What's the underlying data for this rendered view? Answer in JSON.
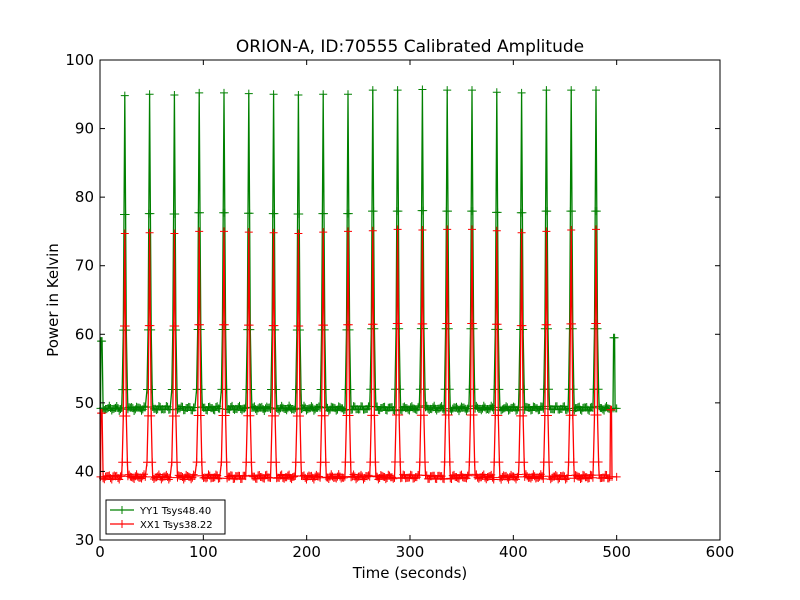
{
  "chart_data": {
    "type": "line",
    "title": "ORION-A, ID:70555 Calibrated Amplitude",
    "xlabel": "Time (seconds)",
    "ylabel": "Power in Kelvin",
    "xlim": [
      0,
      600
    ],
    "ylim": [
      30,
      100
    ],
    "xticks": [
      0,
      100,
      200,
      300,
      400,
      500,
      600
    ],
    "yticks": [
      30,
      40,
      50,
      60,
      70,
      80,
      90,
      100
    ],
    "grid": false,
    "legend_position": "lower-left",
    "marker": "+",
    "colors": {
      "YY1": "#008000",
      "XX1": "#ff0000"
    },
    "series": [
      {
        "name": "YY1 Tsys48.40",
        "baseline": 49.2,
        "start_value": 59,
        "end_spike": {
          "x": 497,
          "y": 59.5
        },
        "end_x": 500,
        "peaks": [
          {
            "x": 24,
            "y": 94.8
          },
          {
            "x": 48,
            "y": 95.0
          },
          {
            "x": 72,
            "y": 94.9
          },
          {
            "x": 96,
            "y": 95.2
          },
          {
            "x": 120,
            "y": 95.2
          },
          {
            "x": 144,
            "y": 95.1
          },
          {
            "x": 168,
            "y": 95.0
          },
          {
            "x": 192,
            "y": 94.9
          },
          {
            "x": 216,
            "y": 95.0
          },
          {
            "x": 240,
            "y": 95.0
          },
          {
            "x": 264,
            "y": 95.6
          },
          {
            "x": 288,
            "y": 95.6
          },
          {
            "x": 312,
            "y": 95.7
          },
          {
            "x": 336,
            "y": 95.6
          },
          {
            "x": 360,
            "y": 95.6
          },
          {
            "x": 384,
            "y": 95.3
          },
          {
            "x": 408,
            "y": 95.2
          },
          {
            "x": 432,
            "y": 95.6
          },
          {
            "x": 456,
            "y": 95.6
          },
          {
            "x": 480,
            "y": 95.6
          }
        ]
      },
      {
        "name": "XX1 Tsys38.22",
        "baseline": 39.2,
        "start_value": 48.5,
        "end_spike": {
          "x": 494,
          "y": 49
        },
        "end_x": 500,
        "peaks": [
          {
            "x": 24,
            "y": 74.7
          },
          {
            "x": 48,
            "y": 74.8
          },
          {
            "x": 72,
            "y": 74.7
          },
          {
            "x": 96,
            "y": 75.0
          },
          {
            "x": 120,
            "y": 75.0
          },
          {
            "x": 144,
            "y": 74.9
          },
          {
            "x": 168,
            "y": 74.8
          },
          {
            "x": 192,
            "y": 74.7
          },
          {
            "x": 216,
            "y": 74.9
          },
          {
            "x": 240,
            "y": 75.0
          },
          {
            "x": 264,
            "y": 75.1
          },
          {
            "x": 288,
            "y": 75.3
          },
          {
            "x": 312,
            "y": 75.2
          },
          {
            "x": 336,
            "y": 75.3
          },
          {
            "x": 360,
            "y": 75.3
          },
          {
            "x": 384,
            "y": 75.1
          },
          {
            "x": 408,
            "y": 74.8
          },
          {
            "x": 432,
            "y": 75.0
          },
          {
            "x": 456,
            "y": 75.2
          },
          {
            "x": 480,
            "y": 75.3
          }
        ]
      }
    ]
  }
}
